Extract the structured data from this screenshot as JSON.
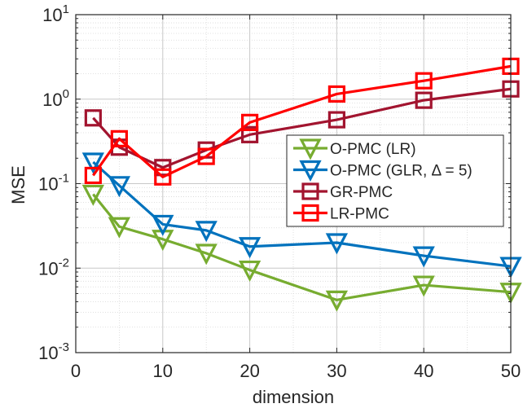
{
  "chart_data": {
    "type": "line",
    "xlabel": "dimension",
    "ylabel": "MSE",
    "xlim": [
      0,
      50
    ],
    "ylim": [
      0.001,
      10
    ],
    "yscale": "log",
    "grid": true,
    "minor_grid": true,
    "legend_position": "center-right",
    "x_ticks": [
      {
        "value": 0,
        "label": "0"
      },
      {
        "value": 10,
        "label": "10"
      },
      {
        "value": 20,
        "label": "20"
      },
      {
        "value": 30,
        "label": "30"
      },
      {
        "value": 40,
        "label": "40"
      },
      {
        "value": 50,
        "label": "50"
      }
    ],
    "y_ticks": [
      {
        "value": 0.001,
        "base": "10",
        "exp": "-3"
      },
      {
        "value": 0.01,
        "base": "10",
        "exp": "-2"
      },
      {
        "value": 0.1,
        "base": "10",
        "exp": "-1"
      },
      {
        "value": 1,
        "base": "10",
        "exp": "0"
      },
      {
        "value": 10,
        "base": "10",
        "exp": "1"
      }
    ],
    "series": [
      {
        "name": "O-PMC (LR)",
        "color": "#77AC30",
        "marker": "triangle-down",
        "x": [
          2,
          5,
          10,
          15,
          20,
          30,
          40,
          50
        ],
        "y": [
          0.075,
          0.031,
          0.022,
          0.015,
          0.0095,
          0.0042,
          0.0063,
          0.0052
        ]
      },
      {
        "name": "O-PMC (GLR, Δ = 5)",
        "color": "#0072BD",
        "marker": "triangle-down",
        "x": [
          2,
          5,
          10,
          15,
          20,
          30,
          40,
          50
        ],
        "y": [
          0.18,
          0.095,
          0.033,
          0.028,
          0.018,
          0.02,
          0.014,
          0.0105
        ]
      },
      {
        "name": "GR-PMC",
        "color": "#A2142F",
        "marker": "square",
        "x": [
          2,
          5,
          10,
          15,
          20,
          30,
          40,
          50
        ],
        "y": [
          0.6,
          0.27,
          0.155,
          0.25,
          0.38,
          0.57,
          0.97,
          1.32
        ]
      },
      {
        "name": "LR-PMC",
        "color": "#FF0000",
        "marker": "square",
        "x": [
          2,
          5,
          10,
          15,
          20,
          30,
          40,
          50
        ],
        "y": [
          0.125,
          0.34,
          0.12,
          0.21,
          0.53,
          1.15,
          1.65,
          2.45
        ]
      }
    ]
  }
}
